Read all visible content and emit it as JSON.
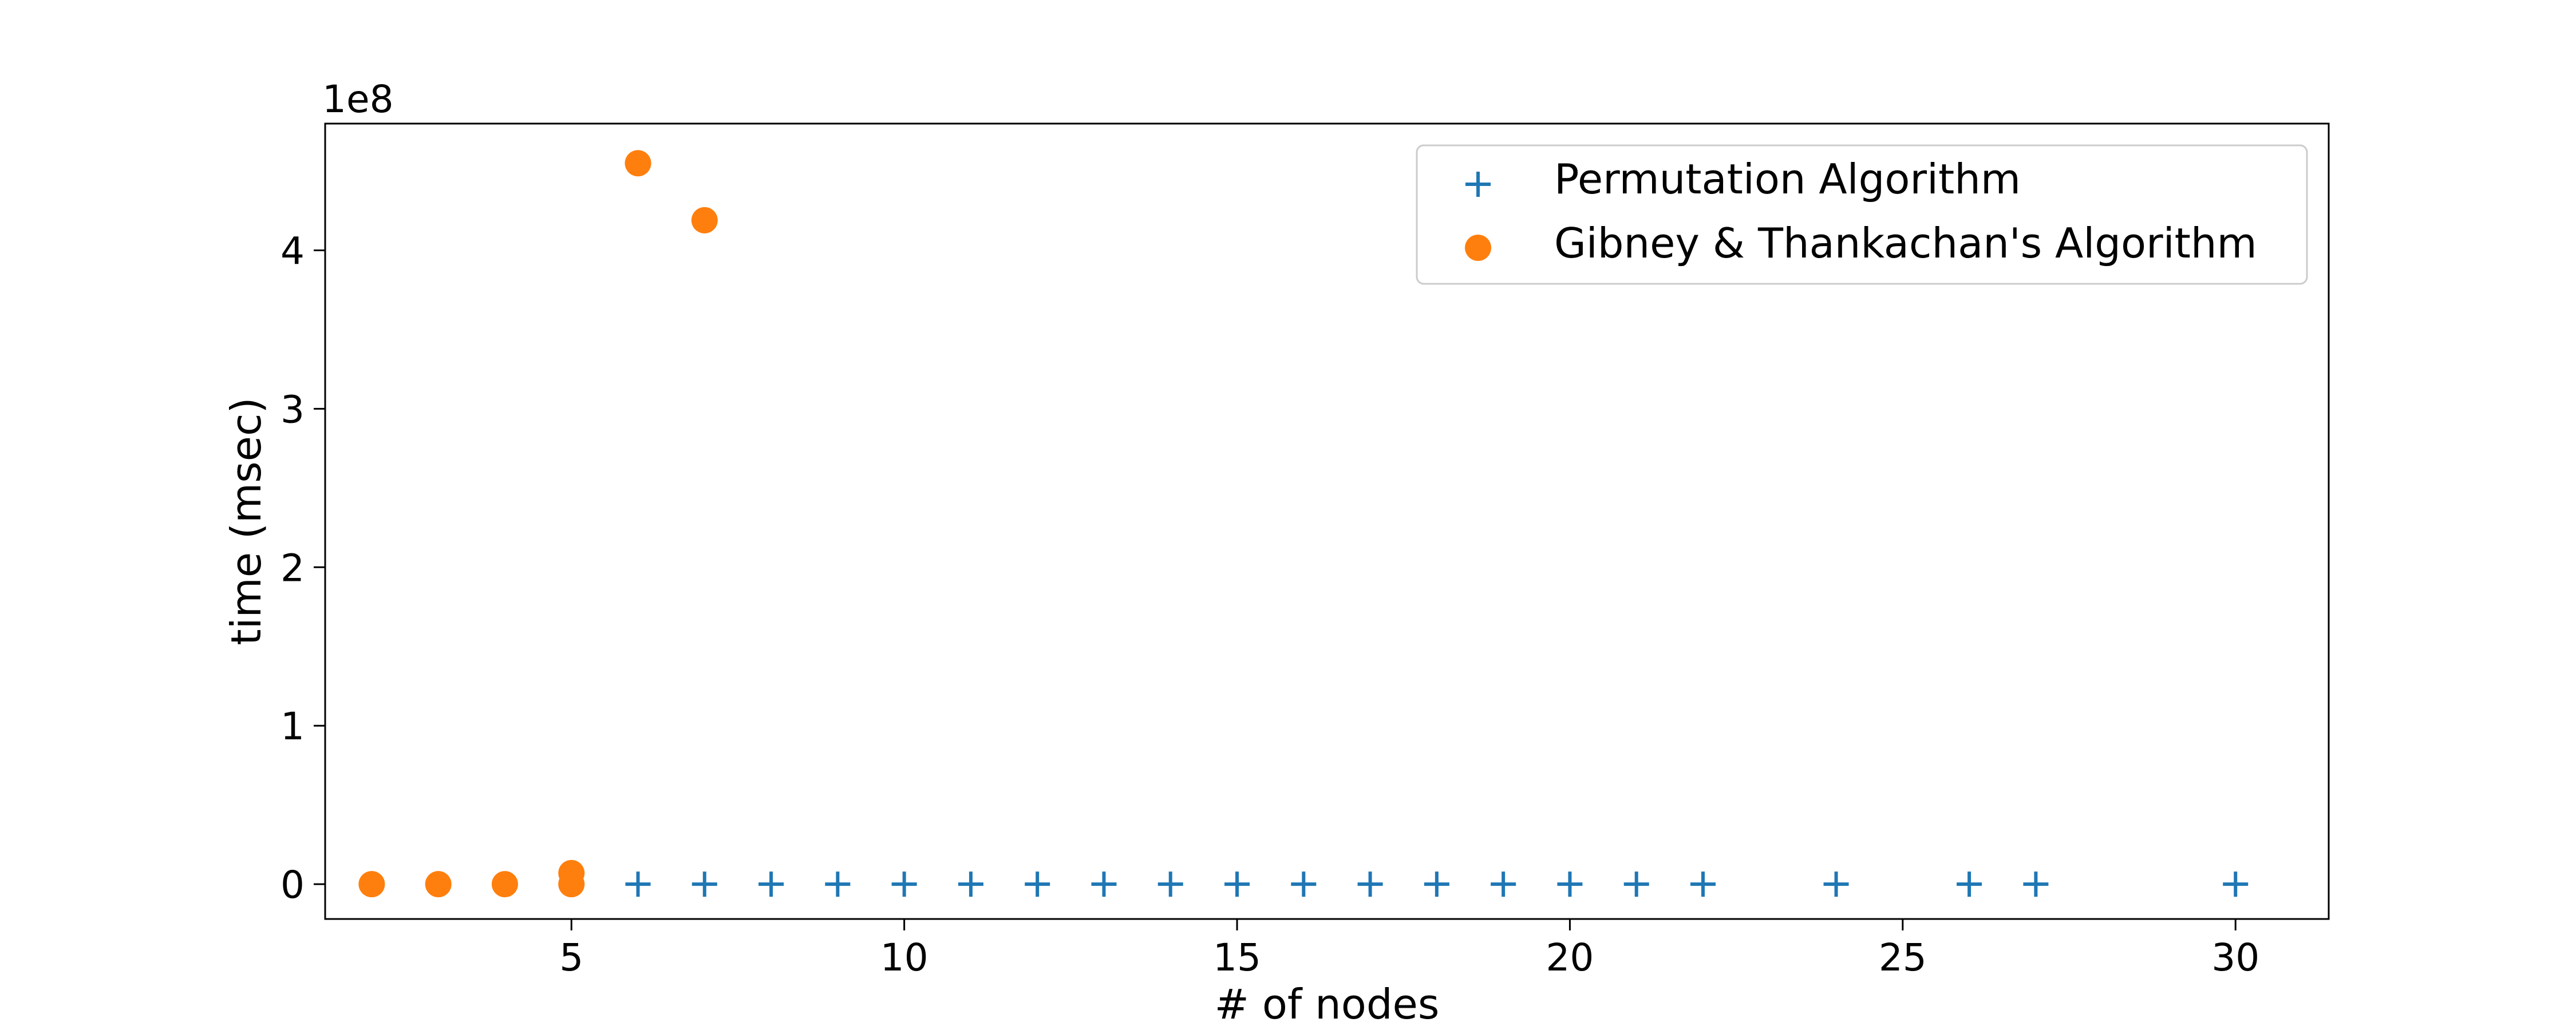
{
  "chart_data": {
    "type": "scatter",
    "title": "",
    "xlabel": "# of nodes",
    "ylabel": "time (msec)",
    "y_offset_label": "1e8",
    "xlim": [
      1.3,
      31.4
    ],
    "ylim": [
      -22000000,
      480000000
    ],
    "x_ticks": [
      5,
      10,
      15,
      20,
      25,
      30
    ],
    "x_tick_labels": [
      "5",
      "10",
      "15",
      "20",
      "25",
      "30"
    ],
    "y_ticks": [
      0,
      100000000,
      200000000,
      300000000,
      400000000
    ],
    "y_tick_labels": [
      "0",
      "1",
      "2",
      "3",
      "4"
    ],
    "grid": false,
    "legend_position": "top-right",
    "series": [
      {
        "name": "Permutation Algorithm",
        "marker": "plus",
        "color": "#1f77b4",
        "points": [
          [
            6,
            0
          ],
          [
            7,
            0
          ],
          [
            8,
            0
          ],
          [
            9,
            0
          ],
          [
            10,
            0
          ],
          [
            11,
            0
          ],
          [
            12,
            0
          ],
          [
            13,
            0
          ],
          [
            14,
            0
          ],
          [
            15,
            0
          ],
          [
            16,
            0
          ],
          [
            17,
            0
          ],
          [
            18,
            0
          ],
          [
            19,
            0
          ],
          [
            20,
            0
          ],
          [
            21,
            0
          ],
          [
            22,
            0
          ],
          [
            24,
            0
          ],
          [
            26,
            0
          ],
          [
            27,
            0
          ],
          [
            30,
            0
          ]
        ]
      },
      {
        "name": "Gibney & Thankachan's Algorithm",
        "marker": "circle",
        "color": "#ff7f0e",
        "points": [
          [
            2,
            0
          ],
          [
            3,
            0
          ],
          [
            4,
            0
          ],
          [
            5,
            0
          ],
          [
            5,
            7000000
          ],
          [
            6,
            455000000
          ],
          [
            7,
            419000000
          ]
        ]
      }
    ]
  }
}
